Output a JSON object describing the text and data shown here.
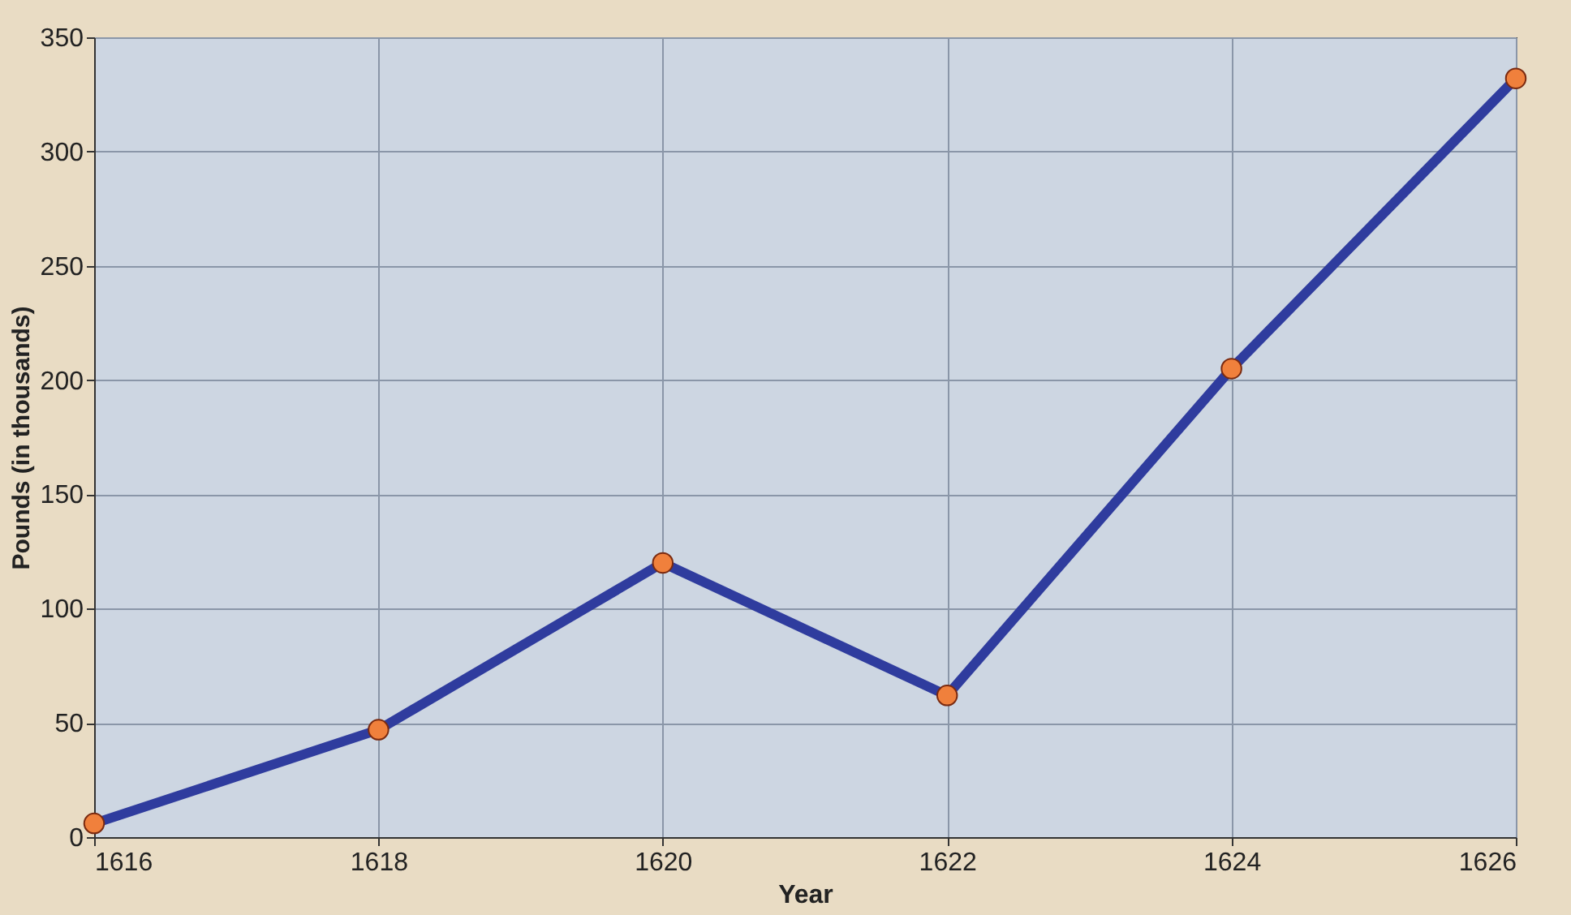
{
  "chart_data": {
    "type": "line",
    "xlabel": "Year",
    "ylabel": "Pounds (in thousands)",
    "x": [
      1616,
      1618,
      1620,
      1622,
      1624,
      1626
    ],
    "series": [
      {
        "color": "#2f3c9e",
        "values": [
          6,
          47,
          120,
          62,
          205,
          332
        ]
      }
    ],
    "xlim": [
      1616,
      1626
    ],
    "xticks": [
      1616,
      1618,
      1620,
      1622,
      1624,
      1626
    ],
    "ylim": [
      0,
      350
    ],
    "yticks": [
      0,
      50,
      100,
      150,
      200,
      250,
      300,
      350
    ],
    "grid": true,
    "marker": "circle",
    "line_style": "solid"
  }
}
